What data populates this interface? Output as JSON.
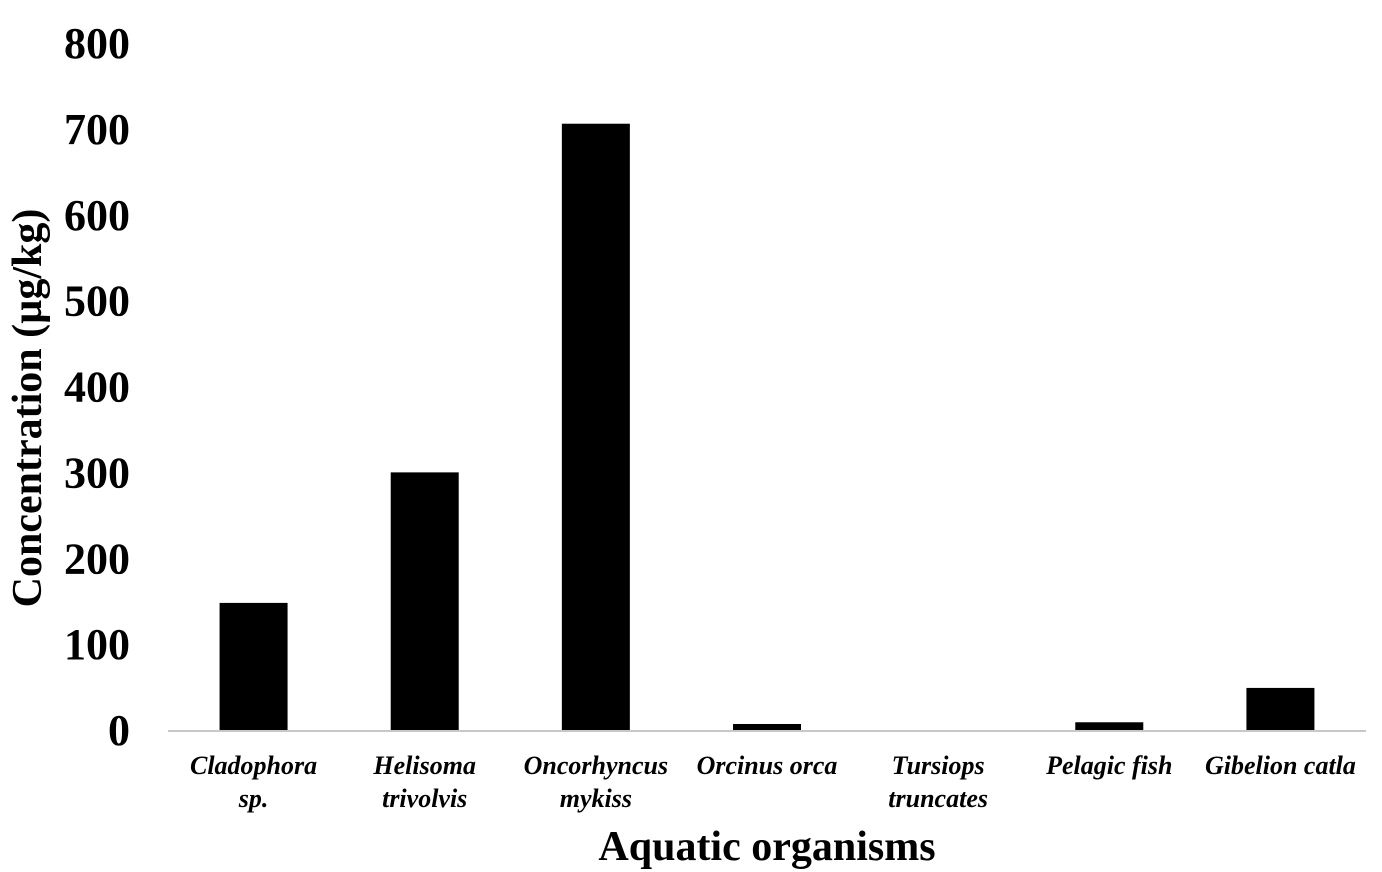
{
  "chart_data": {
    "type": "bar",
    "categories": [
      [
        "Cladophora",
        "sp."
      ],
      [
        "Helisoma",
        "trivolvis"
      ],
      [
        "Oncorhyncus",
        "mykiss"
      ],
      [
        "Orcinus orca"
      ],
      [
        "Tursiops",
        "truncates"
      ],
      [
        "Pelagic fish"
      ],
      [
        "Gibelion catla"
      ]
    ],
    "values": [
      148,
      300,
      706,
      7,
      0,
      9,
      49
    ],
    "ylim": [
      0,
      800
    ],
    "yticks": [
      "0",
      "100",
      "200",
      "300",
      "400",
      "500",
      "600",
      "700",
      "800"
    ],
    "xlabel": "Aquatic organisms",
    "ylabel": "Concentration (µg/kg)",
    "grid": false,
    "bar_color": "#000000",
    "axis_color": "#c8c8c8"
  }
}
